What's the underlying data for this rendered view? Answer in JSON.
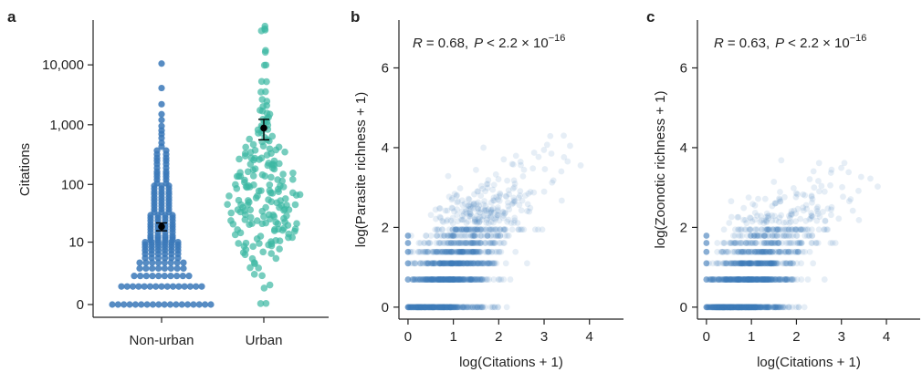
{
  "chart_data": [
    {
      "panel": "a",
      "type": "scatter",
      "subtype": "beeswarm",
      "ylabel": "Citations",
      "y_scale": "log(x+1)",
      "categories": [
        "Non-urban",
        "Urban"
      ],
      "yticks": [
        0,
        10,
        100,
        1000,
        10000
      ],
      "ytick_labels": [
        "0",
        "10",
        "100",
        "1,000",
        "10,000"
      ],
      "colors": {
        "Non-urban": "#3a78b8",
        "Urban": "#3cb8a2",
        "mean": "#000000"
      },
      "summary": [
        {
          "category": "Non-urban",
          "mean": 19,
          "error_low": 16,
          "error_high": 22
        },
        {
          "category": "Urban",
          "mean": 880,
          "error_low": 560,
          "error_high": 1230
        }
      ],
      "non_urban_citations": [
        10500,
        4100,
        2200,
        1500,
        1200,
        950,
        800,
        700,
        600,
        500,
        430,
        370,
        320,
        280,
        250,
        220,
        190,
        165,
        150,
        135,
        120,
        105,
        95,
        85,
        75,
        68,
        60,
        54,
        48,
        43,
        38,
        34,
        30,
        27,
        24,
        21,
        19,
        17,
        15,
        13,
        12,
        11,
        10,
        9,
        8,
        7,
        6,
        5,
        4,
        3,
        2,
        1,
        0
      ],
      "urban_citations": [
        43000,
        39000,
        17000,
        9500,
        5500,
        3500,
        2600,
        2000,
        1700,
        1500,
        1300,
        1200,
        1100,
        950,
        850,
        780,
        700,
        640,
        580,
        520,
        470,
        430,
        390,
        350,
        320,
        290,
        260,
        240,
        220,
        200,
        180,
        160,
        145,
        130,
        118,
        105,
        95,
        85,
        77,
        70,
        63,
        57,
        52,
        47,
        43,
        39,
        35,
        32,
        29,
        26,
        24,
        22,
        20,
        18,
        16,
        14,
        12,
        11,
        10,
        9,
        8,
        7,
        6,
        5,
        4,
        3,
        2,
        1,
        0
      ]
    },
    {
      "panel": "b",
      "type": "scatter",
      "xlabel": "log(Citations + 1)",
      "ylabel": "log(Parasite richness + 1)",
      "xlim": [
        -0.2,
        4.75
      ],
      "ylim": [
        -0.3,
        7.2
      ],
      "xticks": [
        0,
        1,
        2,
        3,
        4
      ],
      "yticks": [
        0,
        2,
        4,
        6
      ],
      "color": "#3a78b8",
      "annotation": {
        "r_label": "R",
        "r_value": "= 0.68,",
        "p_label": "P",
        "p_value": "< 2.2 × 10",
        "p_exp": "−16"
      },
      "slope": 1.05,
      "intercept": 0.45
    },
    {
      "panel": "c",
      "type": "scatter",
      "xlabel": "log(Citations + 1)",
      "ylabel": "log(Zoonotic richness + 1)",
      "xlim": [
        -0.2,
        4.75
      ],
      "ylim": [
        -0.3,
        7.2
      ],
      "xticks": [
        0,
        1,
        2,
        3,
        4
      ],
      "yticks": [
        0,
        2,
        4,
        6
      ],
      "color": "#3a78b8",
      "annotation": {
        "r_label": "R",
        "r_value": "= 0.63,",
        "p_label": "P",
        "p_value": "< 2.2 × 10",
        "p_exp": "−16"
      },
      "slope": 0.95,
      "intercept": 0.3
    }
  ]
}
